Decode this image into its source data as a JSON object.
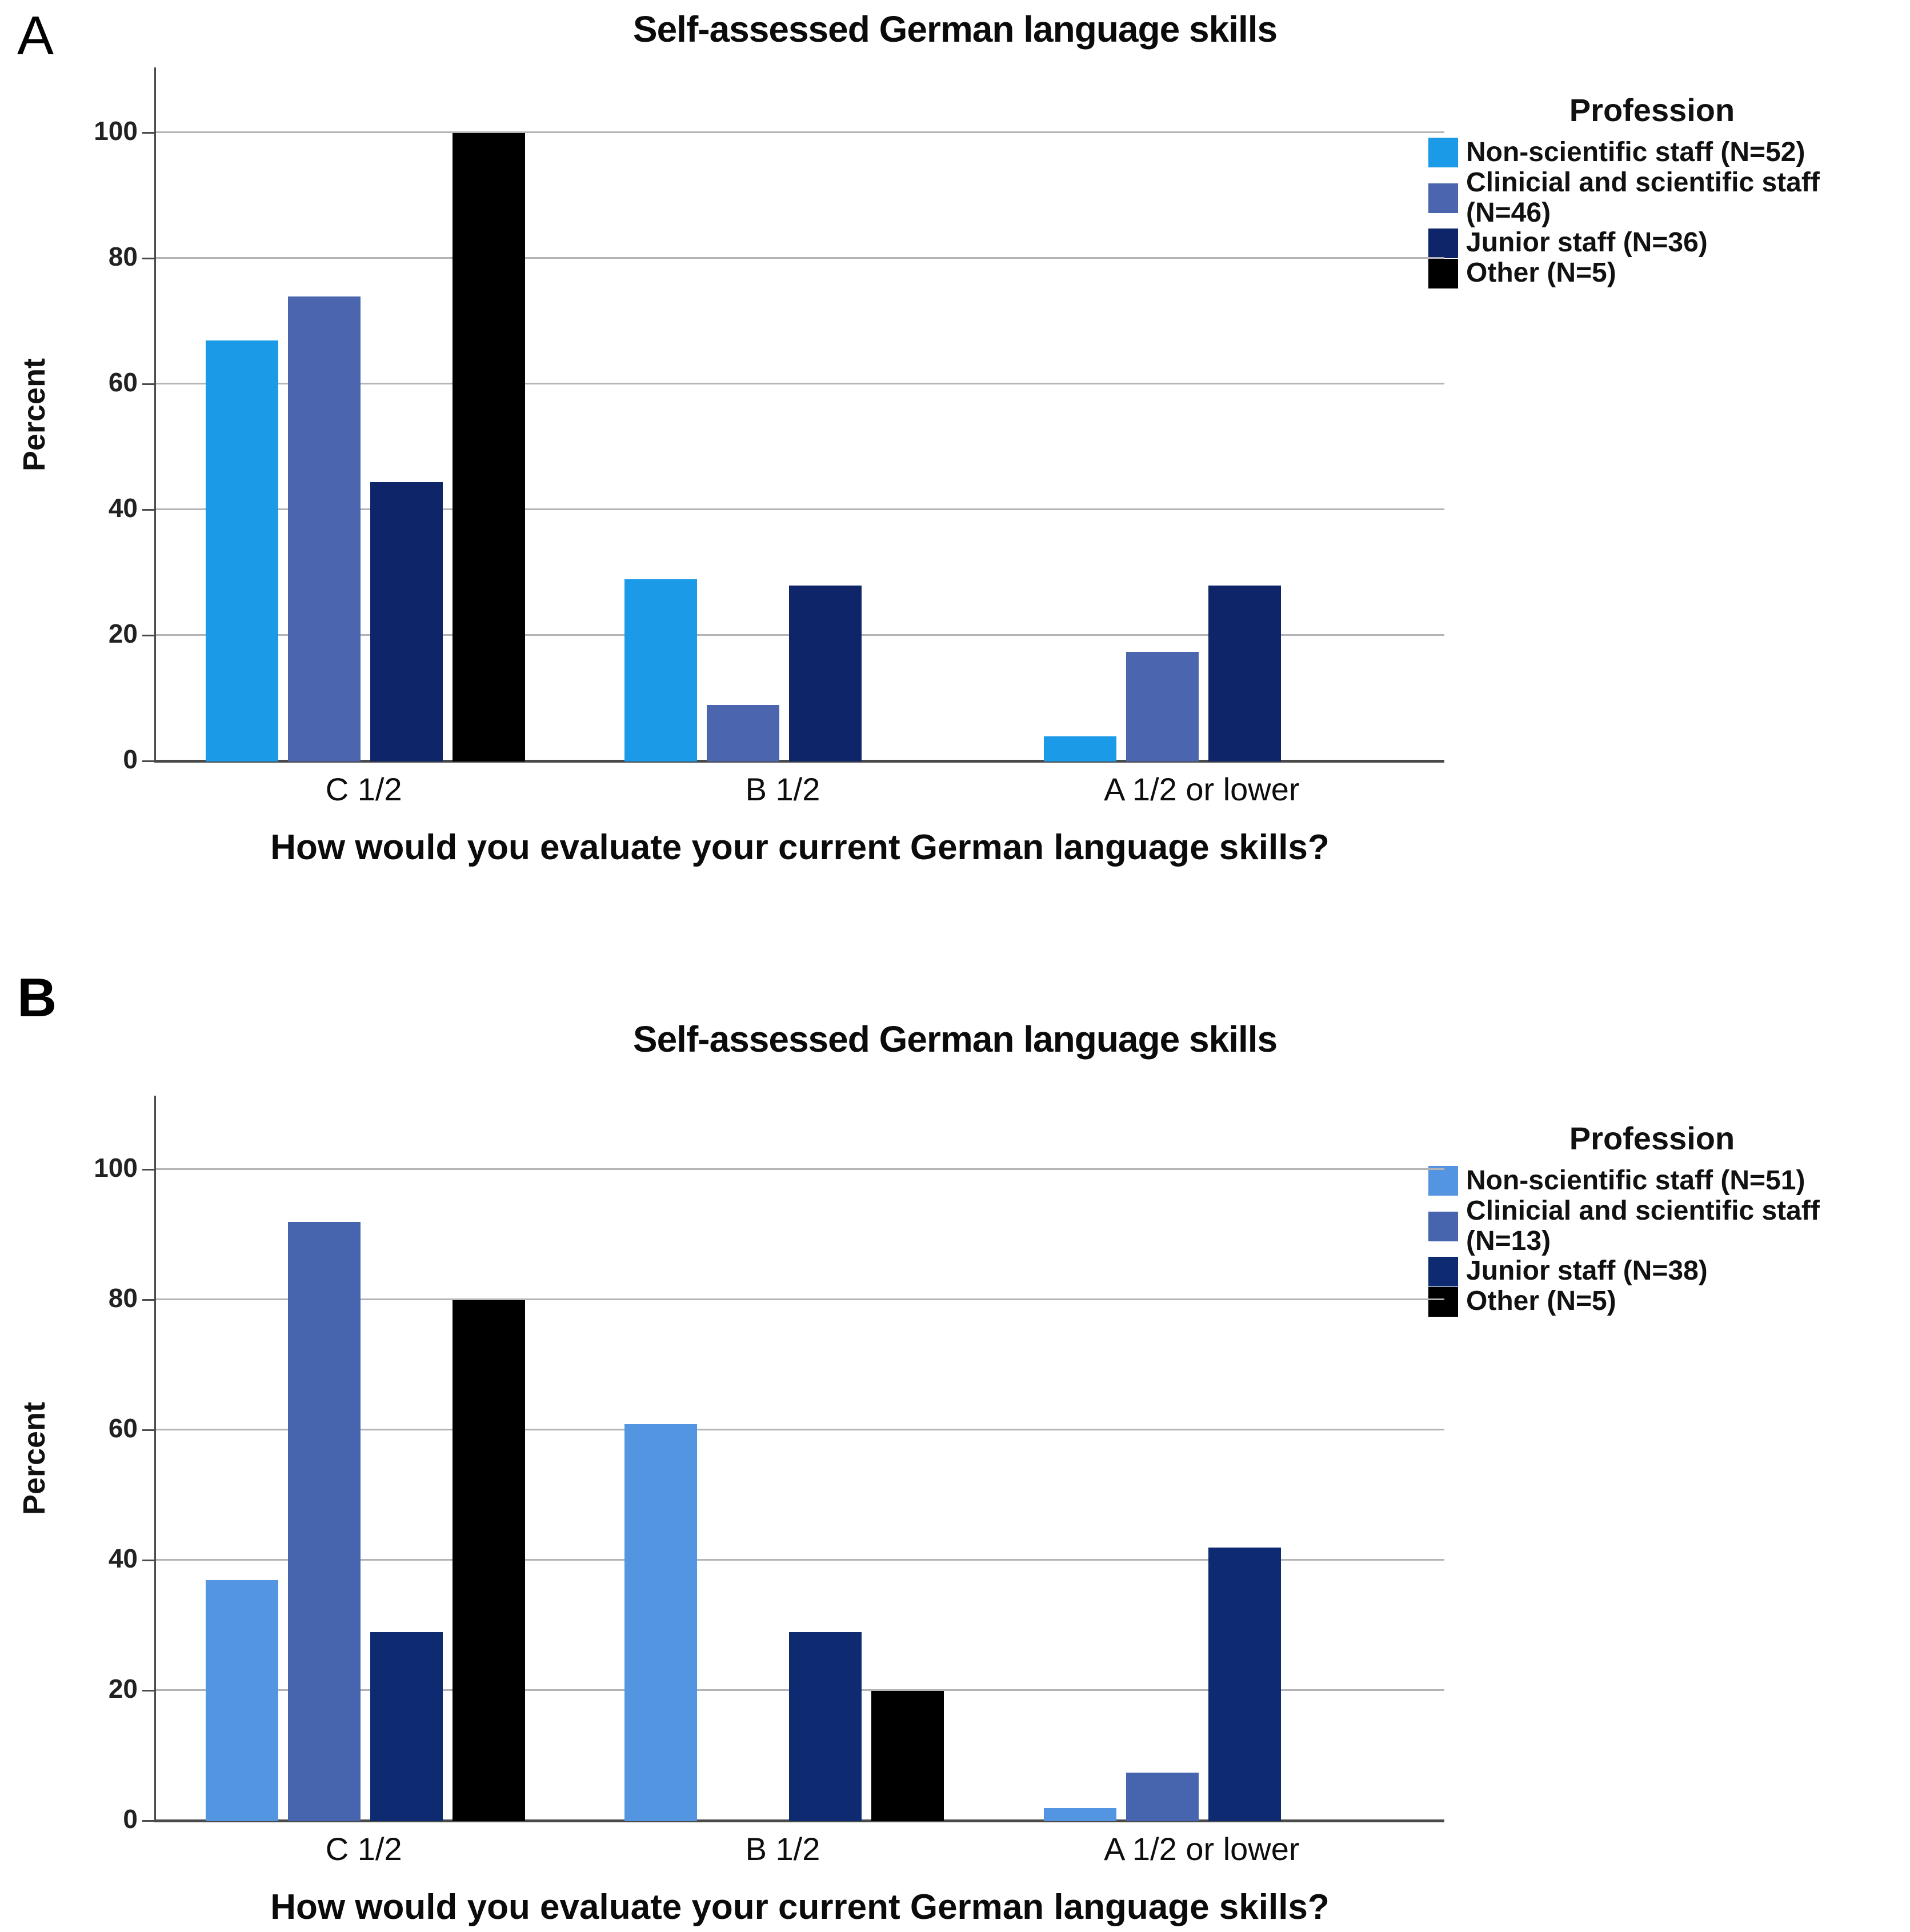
{
  "chart_data": [
    {
      "type": "bar",
      "panel_label": "A",
      "title": "Self-assessed German language skills",
      "xlabel": "How would you evaluate your current German language skills?",
      "ylabel": "Percent",
      "legend_title": "Profession",
      "legend_position": "right",
      "grid": true,
      "ylim": [
        0,
        110
      ],
      "yticks": [
        0,
        20,
        40,
        60,
        80,
        100
      ],
      "categories": [
        "C 1/2",
        "B 1/2",
        "A 1/2 or lower"
      ],
      "series": [
        {
          "name": "Non-scientific staff (N=52)",
          "color": "#1B9AE8",
          "values": [
            67,
            29,
            4
          ]
        },
        {
          "name": "Clinicial and scientific staff (N=46)",
          "color": "#4B66AE",
          "values": [
            74,
            9,
            17.5
          ]
        },
        {
          "name": "Junior staff (N=36)",
          "color": "#0F2569",
          "values": [
            44.5,
            28,
            28
          ]
        },
        {
          "name": "Other (N=5)",
          "color": "#000000",
          "values": [
            100,
            0,
            0
          ]
        }
      ]
    },
    {
      "type": "bar",
      "panel_label": "B",
      "title": "Self-assessed German language skills",
      "xlabel": "How would you evaluate your current German language skills?",
      "ylabel": "Percent",
      "legend_title": "Profession",
      "legend_position": "right",
      "grid": true,
      "ylim": [
        0,
        110
      ],
      "yticks": [
        0,
        20,
        40,
        60,
        80,
        100
      ],
      "categories": [
        "C 1/2",
        "B 1/2",
        "A 1/2 or lower"
      ],
      "series": [
        {
          "name": "Non-scientific staff (N=51)",
          "color": "#5495E2",
          "values": [
            37,
            61,
            2
          ]
        },
        {
          "name": "Clinicial and scientific staff (N=13)",
          "color": "#4765AF",
          "values": [
            92,
            0,
            7.5
          ]
        },
        {
          "name": "Junior staff (N=38)",
          "color": "#0E2B72",
          "values": [
            29,
            29,
            42
          ]
        },
        {
          "name": "Other (N=5)",
          "color": "#000000",
          "values": [
            80,
            20,
            0
          ]
        }
      ]
    }
  ]
}
